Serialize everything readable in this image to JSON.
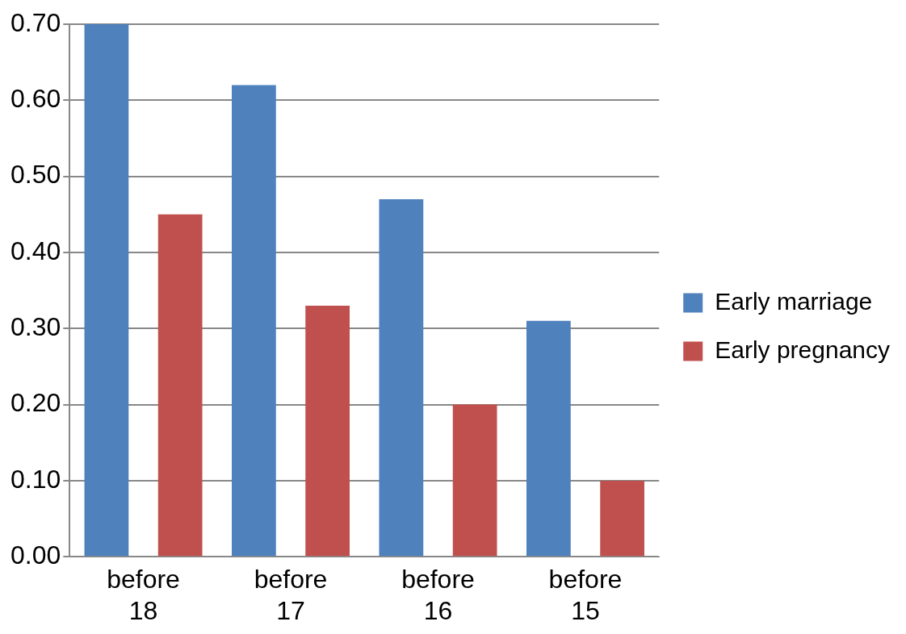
{
  "chart_data": {
    "type": "bar",
    "categories": [
      "before 18",
      "before 17",
      "before 16",
      "before 15"
    ],
    "series": [
      {
        "name": "Early marriage",
        "color": "#4f81bd",
        "values": [
          0.7,
          0.62,
          0.47,
          0.31
        ]
      },
      {
        "name": "Early pregnancy",
        "color": "#c0504d",
        "values": [
          0.45,
          0.33,
          0.2,
          0.1
        ]
      }
    ],
    "ylim": [
      0,
      0.7
    ],
    "yticks": [
      {
        "value": 0,
        "label": "0.00"
      },
      {
        "value": 0.1,
        "label": "0.10"
      },
      {
        "value": 0.2,
        "label": "0.20"
      },
      {
        "value": 0.3,
        "label": "0.30"
      },
      {
        "value": 0.4,
        "label": "0.40"
      },
      {
        "value": 0.5,
        "label": "0.50"
      },
      {
        "value": 0.6,
        "label": "0.60"
      },
      {
        "value": 0.7,
        "label": "0.70"
      }
    ],
    "grid": "y",
    "legend": "right"
  }
}
